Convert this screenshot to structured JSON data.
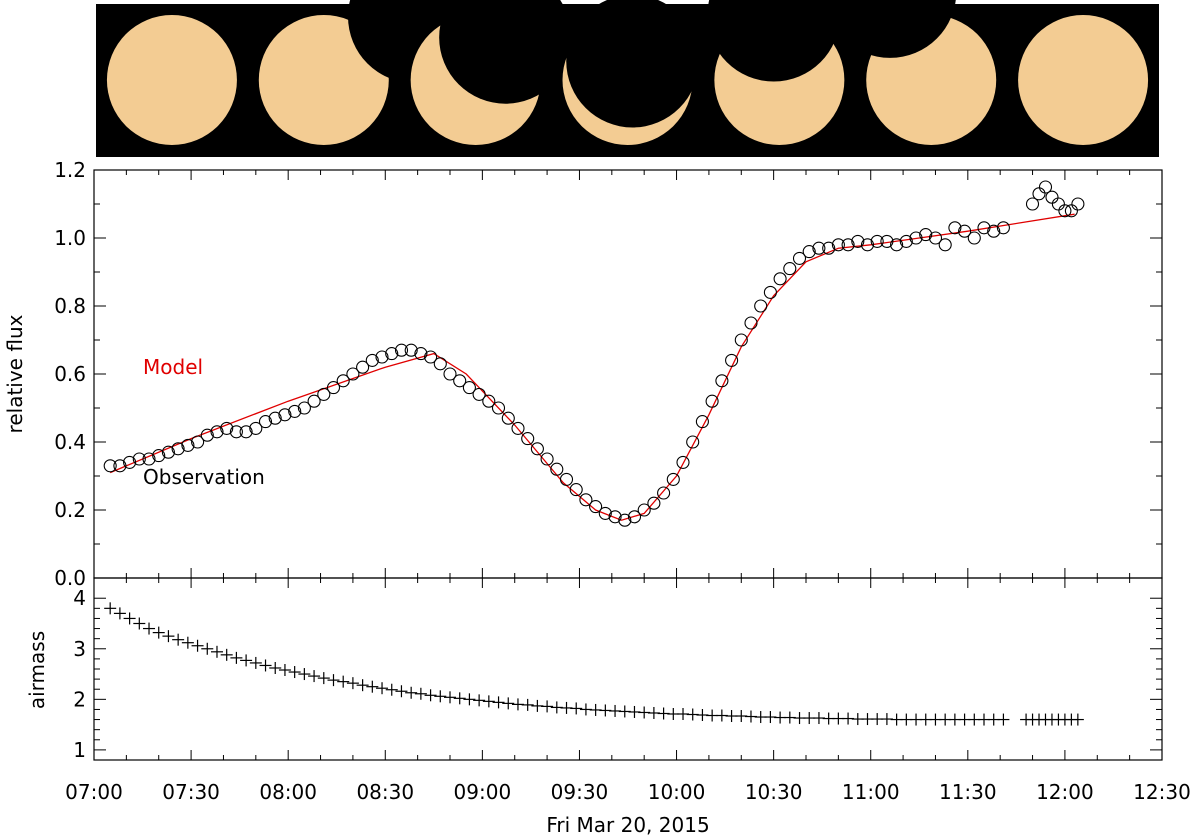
{
  "figure": {
    "sun_strip": {
      "panel_count": 7,
      "sun_color": "#f3cc93",
      "background": "#000000",
      "occluded_fraction_by_panel": [
        0.0,
        0.15,
        0.6,
        0.85,
        0.5,
        0.25,
        0.0
      ]
    }
  },
  "chart_data": [
    {
      "type": "scatter",
      "xlabel": "Fri Mar 20, 2015",
      "ylabel": "relative flux",
      "x_unit": "hh:mm",
      "xlim": [
        "07:00",
        "12:30"
      ],
      "ylim": [
        0.0,
        1.2
      ],
      "x_ticks": [
        "07:00",
        "07:30",
        "08:00",
        "08:30",
        "09:00",
        "09:30",
        "10:00",
        "10:30",
        "11:00",
        "11:30",
        "12:00",
        "12:30"
      ],
      "y_ticks": [
        "0.0",
        "0.2",
        "0.4",
        "0.6",
        "0.8",
        "1.0",
        "1.2"
      ],
      "annotations": [
        {
          "text": "Model",
          "color": "#e00000",
          "at_x": "07:15",
          "at_y": 0.62
        },
        {
          "text": "Observation",
          "color": "#000000",
          "at_x": "07:15",
          "at_y": 0.31
        }
      ],
      "series": [
        {
          "name": "Observation",
          "marker": "circle",
          "color": "#000000",
          "points": [
            [
              "07:05",
              0.33
            ],
            [
              "07:08",
              0.33
            ],
            [
              "07:11",
              0.34
            ],
            [
              "07:14",
              0.35
            ],
            [
              "07:17",
              0.35
            ],
            [
              "07:20",
              0.36
            ],
            [
              "07:23",
              0.37
            ],
            [
              "07:26",
              0.38
            ],
            [
              "07:29",
              0.39
            ],
            [
              "07:32",
              0.4
            ],
            [
              "07:35",
              0.42
            ],
            [
              "07:38",
              0.43
            ],
            [
              "07:41",
              0.44
            ],
            [
              "07:44",
              0.43
            ],
            [
              "07:47",
              0.43
            ],
            [
              "07:50",
              0.44
            ],
            [
              "07:53",
              0.46
            ],
            [
              "07:56",
              0.47
            ],
            [
              "07:59",
              0.48
            ],
            [
              "08:02",
              0.49
            ],
            [
              "08:05",
              0.5
            ],
            [
              "08:08",
              0.52
            ],
            [
              "08:11",
              0.54
            ],
            [
              "08:14",
              0.56
            ],
            [
              "08:17",
              0.58
            ],
            [
              "08:20",
              0.6
            ],
            [
              "08:23",
              0.62
            ],
            [
              "08:26",
              0.64
            ],
            [
              "08:29",
              0.65
            ],
            [
              "08:32",
              0.66
            ],
            [
              "08:35",
              0.67
            ],
            [
              "08:38",
              0.67
            ],
            [
              "08:41",
              0.66
            ],
            [
              "08:44",
              0.65
            ],
            [
              "08:47",
              0.63
            ],
            [
              "08:50",
              0.6
            ],
            [
              "08:53",
              0.58
            ],
            [
              "08:56",
              0.56
            ],
            [
              "08:59",
              0.54
            ],
            [
              "09:02",
              0.52
            ],
            [
              "09:05",
              0.5
            ],
            [
              "09:08",
              0.47
            ],
            [
              "09:11",
              0.44
            ],
            [
              "09:14",
              0.41
            ],
            [
              "09:17",
              0.38
            ],
            [
              "09:20",
              0.35
            ],
            [
              "09:23",
              0.32
            ],
            [
              "09:26",
              0.29
            ],
            [
              "09:29",
              0.26
            ],
            [
              "09:32",
              0.23
            ],
            [
              "09:35",
              0.21
            ],
            [
              "09:38",
              0.19
            ],
            [
              "09:41",
              0.18
            ],
            [
              "09:44",
              0.17
            ],
            [
              "09:47",
              0.18
            ],
            [
              "09:50",
              0.2
            ],
            [
              "09:53",
              0.22
            ],
            [
              "09:56",
              0.25
            ],
            [
              "09:59",
              0.29
            ],
            [
              "10:02",
              0.34
            ],
            [
              "10:05",
              0.4
            ],
            [
              "10:08",
              0.46
            ],
            [
              "10:11",
              0.52
            ],
            [
              "10:14",
              0.58
            ],
            [
              "10:17",
              0.64
            ],
            [
              "10:20",
              0.7
            ],
            [
              "10:23",
              0.75
            ],
            [
              "10:26",
              0.8
            ],
            [
              "10:29",
              0.84
            ],
            [
              "10:32",
              0.88
            ],
            [
              "10:35",
              0.91
            ],
            [
              "10:38",
              0.94
            ],
            [
              "10:41",
              0.96
            ],
            [
              "10:44",
              0.97
            ],
            [
              "10:47",
              0.97
            ],
            [
              "10:50",
              0.98
            ],
            [
              "10:53",
              0.98
            ],
            [
              "10:56",
              0.99
            ],
            [
              "10:59",
              0.98
            ],
            [
              "11:02",
              0.99
            ],
            [
              "11:05",
              0.99
            ],
            [
              "11:08",
              0.98
            ],
            [
              "11:11",
              0.99
            ],
            [
              "11:14",
              1.0
            ],
            [
              "11:17",
              1.01
            ],
            [
              "11:20",
              1.0
            ],
            [
              "11:23",
              0.98
            ],
            [
              "11:26",
              1.03
            ],
            [
              "11:29",
              1.02
            ],
            [
              "11:32",
              1.0
            ],
            [
              "11:35",
              1.03
            ],
            [
              "11:38",
              1.02
            ],
            [
              "11:41",
              1.03
            ],
            [
              "11:50",
              1.1
            ],
            [
              "11:52",
              1.13
            ],
            [
              "11:54",
              1.15
            ],
            [
              "11:56",
              1.12
            ],
            [
              "11:58",
              1.1
            ],
            [
              "12:00",
              1.08
            ],
            [
              "12:02",
              1.08
            ],
            [
              "12:04",
              1.1
            ]
          ]
        },
        {
          "name": "Model",
          "marker": "line",
          "color": "#e00000",
          "points": [
            [
              "07:05",
              0.31
            ],
            [
              "07:30",
              0.41
            ],
            [
              "08:00",
              0.52
            ],
            [
              "08:30",
              0.62
            ],
            [
              "08:45",
              0.66
            ],
            [
              "08:55",
              0.6
            ],
            [
              "09:10",
              0.45
            ],
            [
              "09:25",
              0.28
            ],
            [
              "09:35",
              0.2
            ],
            [
              "09:43",
              0.17
            ],
            [
              "09:50",
              0.19
            ],
            [
              "10:00",
              0.3
            ],
            [
              "10:10",
              0.48
            ],
            [
              "10:20",
              0.68
            ],
            [
              "10:30",
              0.83
            ],
            [
              "10:40",
              0.93
            ],
            [
              "10:50",
              0.97
            ],
            [
              "11:00",
              0.98
            ],
            [
              "11:15",
              1.0
            ],
            [
              "11:30",
              1.02
            ],
            [
              "12:03",
              1.07
            ]
          ]
        }
      ]
    },
    {
      "type": "scatter",
      "xlabel": "Fri Mar 20, 2015",
      "ylabel": "airmass",
      "x_unit": "hh:mm",
      "xlim": [
        "07:00",
        "12:30"
      ],
      "ylim": [
        0.8,
        4.4
      ],
      "y_ticks": [
        "1",
        "2",
        "3",
        "4"
      ],
      "series": [
        {
          "name": "",
          "marker": "plus",
          "color": "#000000",
          "points": [
            [
              "07:05",
              3.8
            ],
            [
              "07:08",
              3.7
            ],
            [
              "07:11",
              3.6
            ],
            [
              "07:14",
              3.5
            ],
            [
              "07:17",
              3.4
            ],
            [
              "07:20",
              3.32
            ],
            [
              "07:23",
              3.25
            ],
            [
              "07:26",
              3.18
            ],
            [
              "07:29",
              3.12
            ],
            [
              "07:32",
              3.06
            ],
            [
              "07:35",
              3.0
            ],
            [
              "07:38",
              2.94
            ],
            [
              "07:41",
              2.88
            ],
            [
              "07:44",
              2.82
            ],
            [
              "07:47",
              2.77
            ],
            [
              "07:50",
              2.72
            ],
            [
              "07:53",
              2.67
            ],
            [
              "07:56",
              2.62
            ],
            [
              "07:59",
              2.58
            ],
            [
              "08:02",
              2.54
            ],
            [
              "08:05",
              2.5
            ],
            [
              "08:08",
              2.46
            ],
            [
              "08:11",
              2.42
            ],
            [
              "08:14",
              2.38
            ],
            [
              "08:17",
              2.35
            ],
            [
              "08:20",
              2.32
            ],
            [
              "08:23",
              2.28
            ],
            [
              "08:26",
              2.25
            ],
            [
              "08:29",
              2.22
            ],
            [
              "08:32",
              2.19
            ],
            [
              "08:35",
              2.16
            ],
            [
              "08:38",
              2.13
            ],
            [
              "08:41",
              2.11
            ],
            [
              "08:44",
              2.08
            ],
            [
              "08:47",
              2.06
            ],
            [
              "08:50",
              2.04
            ],
            [
              "08:53",
              2.02
            ],
            [
              "08:56",
              2.0
            ],
            [
              "08:59",
              1.98
            ],
            [
              "09:02",
              1.96
            ],
            [
              "09:05",
              1.94
            ],
            [
              "09:08",
              1.92
            ],
            [
              "09:11",
              1.9
            ],
            [
              "09:14",
              1.89
            ],
            [
              "09:17",
              1.87
            ],
            [
              "09:20",
              1.86
            ],
            [
              "09:23",
              1.84
            ],
            [
              "09:26",
              1.83
            ],
            [
              "09:29",
              1.82
            ],
            [
              "09:32",
              1.8
            ],
            [
              "09:35",
              1.79
            ],
            [
              "09:38",
              1.78
            ],
            [
              "09:41",
              1.77
            ],
            [
              "09:44",
              1.76
            ],
            [
              "09:47",
              1.75
            ],
            [
              "09:50",
              1.74
            ],
            [
              "09:53",
              1.73
            ],
            [
              "09:56",
              1.72
            ],
            [
              "09:59",
              1.71
            ],
            [
              "10:02",
              1.71
            ],
            [
              "10:05",
              1.7
            ],
            [
              "10:08",
              1.69
            ],
            [
              "10:11",
              1.68
            ],
            [
              "10:14",
              1.68
            ],
            [
              "10:17",
              1.67
            ],
            [
              "10:20",
              1.67
            ],
            [
              "10:23",
              1.66
            ],
            [
              "10:26",
              1.65
            ],
            [
              "10:29",
              1.65
            ],
            [
              "10:32",
              1.64
            ],
            [
              "10:35",
              1.64
            ],
            [
              "10:38",
              1.63
            ],
            [
              "10:41",
              1.63
            ],
            [
              "10:44",
              1.63
            ],
            [
              "10:47",
              1.62
            ],
            [
              "10:50",
              1.62
            ],
            [
              "10:53",
              1.62
            ],
            [
              "10:56",
              1.61
            ],
            [
              "10:59",
              1.61
            ],
            [
              "11:02",
              1.61
            ],
            [
              "11:05",
              1.61
            ],
            [
              "11:08",
              1.6
            ],
            [
              "11:11",
              1.6
            ],
            [
              "11:14",
              1.6
            ],
            [
              "11:17",
              1.6
            ],
            [
              "11:20",
              1.6
            ],
            [
              "11:23",
              1.6
            ],
            [
              "11:26",
              1.6
            ],
            [
              "11:29",
              1.6
            ],
            [
              "11:32",
              1.6
            ],
            [
              "11:35",
              1.6
            ],
            [
              "11:38",
              1.6
            ],
            [
              "11:41",
              1.6
            ],
            [
              "11:48",
              1.6
            ],
            [
              "11:50",
              1.6
            ],
            [
              "11:52",
              1.6
            ],
            [
              "11:54",
              1.6
            ],
            [
              "11:56",
              1.6
            ],
            [
              "11:58",
              1.6
            ],
            [
              "12:00",
              1.6
            ],
            [
              "12:02",
              1.6
            ],
            [
              "12:04",
              1.6
            ]
          ]
        }
      ]
    }
  ]
}
